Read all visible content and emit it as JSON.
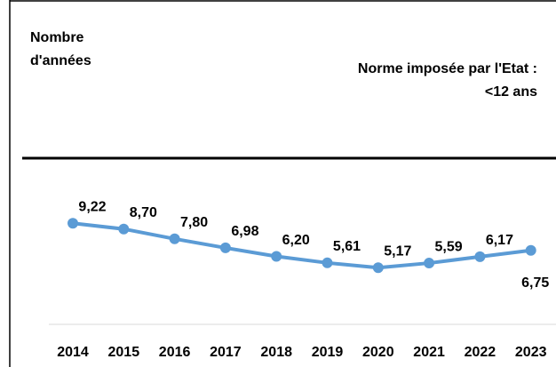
{
  "chart_data": {
    "type": "line",
    "y_label": "Nombre d'années",
    "annotation": "Norme imposée par l'Etat : <12 ans",
    "categories": [
      "2014",
      "2015",
      "2016",
      "2017",
      "2018",
      "2019",
      "2020",
      "2021",
      "2022",
      "2023"
    ],
    "series": [
      {
        "name": null,
        "color": "#5b9bd5",
        "values": [
          9.22,
          8.7,
          7.8,
          6.98,
          6.2,
          5.61,
          5.17,
          5.59,
          6.17,
          6.75
        ],
        "value_labels": [
          "9,22",
          "8,70",
          "7,80",
          "6,98",
          "6,20",
          "5,61",
          "5,17",
          "5,59",
          "6,17",
          "6,75"
        ]
      }
    ],
    "ylim": [
      0,
      15
    ]
  }
}
